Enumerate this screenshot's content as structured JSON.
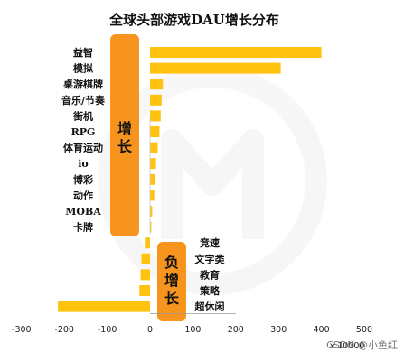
{
  "chart_data": {
    "type": "bar",
    "orientation": "horizontal",
    "title": "全球头部游戏DAU增长分布",
    "categories": [
      "益智",
      "模拟",
      "桌游棋牌",
      "音乐/节奏",
      "街机",
      "RPG",
      "体育运动",
      "io",
      "博彩",
      "动作",
      "MOBA",
      "卡牌",
      "竞速",
      "文字类",
      "教育",
      "策略",
      "超休闲"
    ],
    "values": [
      400,
      305,
      30,
      27,
      25,
      22,
      18,
      14,
      12,
      10,
      5,
      3,
      -12,
      -20,
      -22,
      -25,
      -215
    ],
    "xlim": [
      -300,
      500
    ],
    "xticks": [
      -300,
      -200,
      -100,
      0,
      100,
      200,
      300,
      400,
      500
    ],
    "unit_label": "x 10000",
    "bar_color": "#FFC20E",
    "badge_color": "#F7941D",
    "growth_badge": "增长",
    "decline_badge": "负增长",
    "watermark": "CSDN @小鱼红"
  }
}
